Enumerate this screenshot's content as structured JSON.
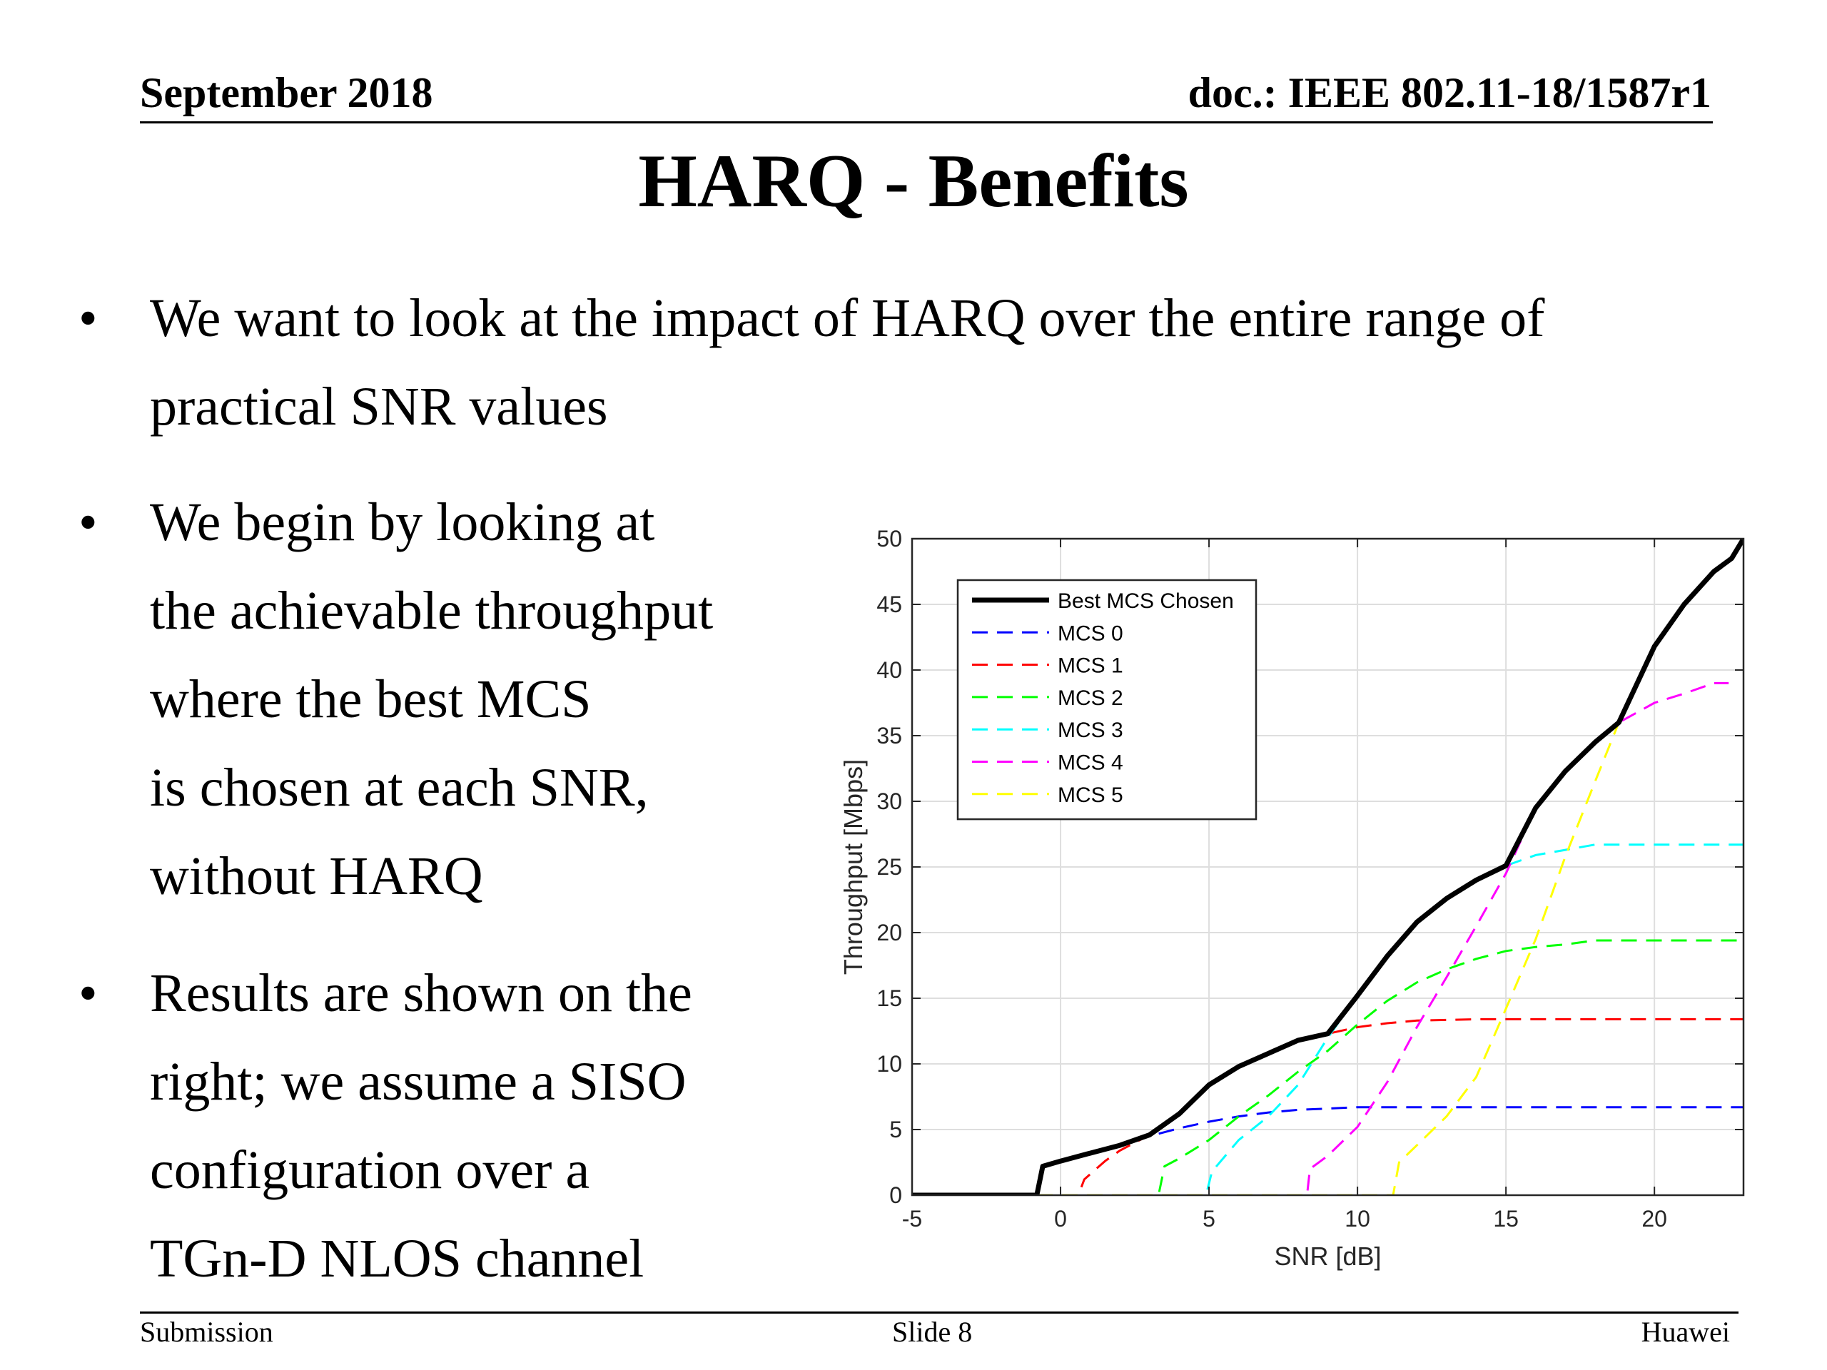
{
  "header": {
    "date": "September 2018",
    "doc": "doc.: IEEE 802.11-18/1587r1"
  },
  "title": "HARQ - Benefits",
  "bullets": {
    "symbol": "•",
    "b1": [
      "We want to look at the impact of HARQ over the entire range of",
      "practical SNR values"
    ],
    "b2": [
      "We begin by looking at",
      "the achievable throughput",
      "where the best MCS",
      "is chosen at each SNR,",
      "without HARQ"
    ],
    "b3": [
      "Results are shown on the",
      "right; we assume a SISO",
      "configuration over a",
      "TGn-D NLOS channel"
    ]
  },
  "footer": {
    "left": "Submission",
    "center": "Slide 8",
    "right": "Huawei"
  },
  "chart_data": {
    "type": "line",
    "title": "",
    "xlabel": "SNR [dB]",
    "ylabel": "Throughput [Mbps]",
    "xlim": [
      -5,
      23
    ],
    "ylim": [
      0,
      50
    ],
    "xticks": [
      -5,
      0,
      5,
      10,
      15,
      20
    ],
    "yticks": [
      0,
      5,
      10,
      15,
      20,
      25,
      30,
      35,
      40,
      45,
      50
    ],
    "grid": true,
    "legend_position": "top-left",
    "series": [
      {
        "name": "MCS 0",
        "color": "#0000ff",
        "style": "dashed",
        "x": [
          -5,
          -0.8,
          -0.6,
          0,
          1,
          2,
          3,
          4,
          5,
          6,
          7,
          8,
          9,
          10,
          12,
          15,
          23
        ],
        "y": [
          0,
          0,
          2.2,
          2.6,
          3.2,
          3.8,
          4.5,
          5.1,
          5.6,
          6.0,
          6.3,
          6.5,
          6.6,
          6.7,
          6.7,
          6.7,
          6.7
        ]
      },
      {
        "name": "MCS 1",
        "color": "#ff0000",
        "style": "dashed",
        "x": [
          -5,
          0.6,
          0.8,
          1.5,
          2,
          3,
          4,
          5,
          6,
          7,
          8,
          9,
          10,
          11,
          12,
          14,
          17,
          23
        ],
        "y": [
          0,
          0,
          1.2,
          2.6,
          3.4,
          4.6,
          6.2,
          8.4,
          9.8,
          10.8,
          11.8,
          12.3,
          12.8,
          13.1,
          13.3,
          13.4,
          13.4,
          13.4
        ]
      },
      {
        "name": "MCS 2",
        "color": "#00ff00",
        "style": "dashed",
        "x": [
          -5,
          3.3,
          3.5,
          4,
          5,
          6,
          7,
          8,
          9,
          10,
          11,
          12,
          13,
          14,
          15,
          16,
          17,
          18,
          23
        ],
        "y": [
          0,
          0,
          2.2,
          2.8,
          4.2,
          6.0,
          7.6,
          9.4,
          11.0,
          13.0,
          14.8,
          16.2,
          17.2,
          18.0,
          18.6,
          18.9,
          19.1,
          19.4,
          19.4
        ]
      },
      {
        "name": "MCS 3",
        "color": "#00ffff",
        "style": "dashed",
        "x": [
          -5,
          4.9,
          5.1,
          6,
          7,
          8,
          9,
          10,
          11,
          12,
          13,
          14,
          15,
          16,
          17,
          18,
          23
        ],
        "y": [
          0,
          0,
          1.8,
          4.2,
          6.0,
          8.4,
          12.0,
          15.2,
          18.2,
          20.8,
          22.6,
          24.0,
          25.1,
          25.9,
          26.3,
          26.7,
          26.7
        ]
      },
      {
        "name": "MCS 4",
        "color": "#ff00ff",
        "style": "dashed",
        "x": [
          -5,
          8.3,
          8.4,
          9,
          10,
          11,
          12,
          13,
          14,
          15,
          16,
          17,
          18,
          18.8,
          20,
          21,
          22,
          22.5
        ],
        "y": [
          0,
          0,
          2.0,
          3.0,
          5.2,
          8.6,
          12.8,
          16.6,
          20.5,
          24.5,
          29.5,
          32.3,
          34.5,
          36.0,
          37.5,
          38.2,
          39.0,
          39.0
        ]
      },
      {
        "name": "MCS 5",
        "color": "#ffff00",
        "style": "dashed",
        "x": [
          -5,
          11.2,
          11.4,
          12,
          13,
          14,
          15,
          16,
          17,
          18,
          18.8,
          19.5,
          20,
          21,
          22,
          22.6,
          23
        ],
        "y": [
          0,
          0,
          2.5,
          3.8,
          6.0,
          9.0,
          14.2,
          19.5,
          25.8,
          31.5,
          36.0,
          39.5,
          41.8,
          45.0,
          47.5,
          48.5,
          50.0
        ]
      },
      {
        "name": "Best MCS Chosen",
        "color": "#000000",
        "style": "solid",
        "x": [
          -5,
          -0.8,
          -0.6,
          0,
          1,
          2,
          3,
          4,
          5,
          6,
          7,
          8,
          9,
          10,
          11,
          12,
          13,
          14,
          15,
          16,
          17,
          18,
          18.8,
          20,
          21,
          22,
          22.6,
          23
        ],
        "y": [
          0,
          0,
          2.2,
          2.6,
          3.2,
          3.8,
          4.6,
          6.2,
          8.4,
          9.8,
          10.8,
          11.8,
          12.3,
          15.2,
          18.2,
          20.8,
          22.6,
          24.0,
          25.1,
          29.5,
          32.3,
          34.5,
          36.0,
          41.8,
          45.0,
          47.5,
          48.5,
          50.0
        ]
      }
    ],
    "legend_order": [
      "Best MCS Chosen",
      "MCS 0",
      "MCS 1",
      "MCS 2",
      "MCS 3",
      "MCS 4",
      "MCS 5"
    ]
  }
}
